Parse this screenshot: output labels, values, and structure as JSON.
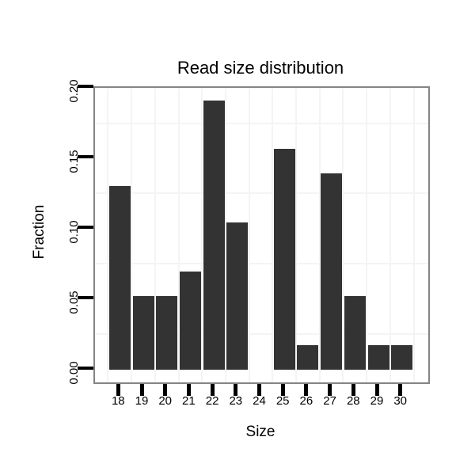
{
  "chart_data": {
    "type": "bar",
    "title": "Read size distribution",
    "xlabel": "Size",
    "ylabel": "Fraction",
    "categories": [
      "18",
      "19",
      "20",
      "21",
      "22",
      "23",
      "24",
      "25",
      "26",
      "27",
      "28",
      "29",
      "30"
    ],
    "values": [
      0.1304,
      0.0522,
      0.0522,
      0.0696,
      0.1913,
      0.1043,
      0.0,
      0.1565,
      0.0174,
      0.1391,
      0.0522,
      0.0174,
      0.0174
    ],
    "y_ticks": [
      {
        "label": "0.00",
        "value": 0.0
      },
      {
        "label": "0.05",
        "value": 0.05
      },
      {
        "label": "0.10",
        "value": 0.1
      },
      {
        "label": "0.15",
        "value": 0.15
      },
      {
        "label": "0.20",
        "value": 0.2
      }
    ],
    "minor_gridlines_y": [
      0.025,
      0.075,
      0.125,
      0.175
    ],
    "ylim": [
      -0.0097,
      0.2001
    ],
    "grid": "minor-only",
    "legend": "none",
    "colors": {
      "bar": "#333333",
      "panel_border": "#848484",
      "gridline": "#f4f4f4",
      "tick": "#000000",
      "text": "#000000",
      "background": "#ffffff"
    }
  }
}
